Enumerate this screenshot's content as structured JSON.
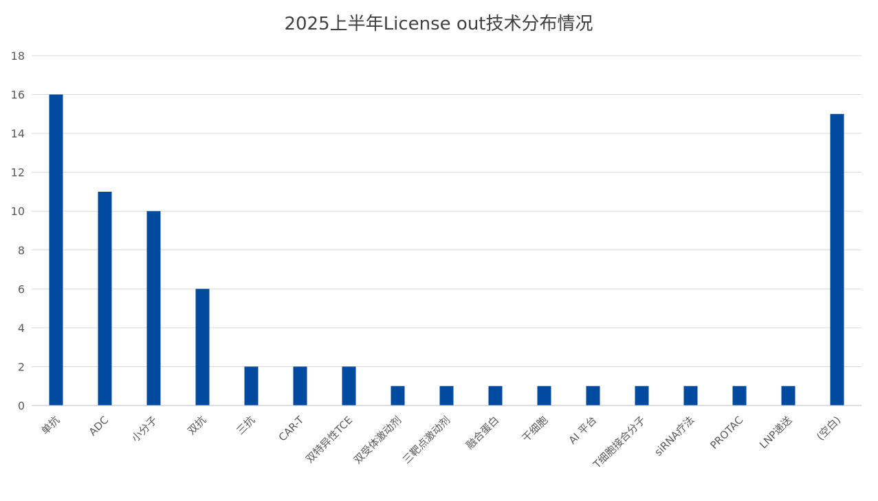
{
  "chart_data": {
    "type": "bar",
    "title": "2025上半年License out技术分布情况",
    "xlabel": "",
    "ylabel": "",
    "ylim": [
      0,
      18
    ],
    "yticks": [
      0,
      2,
      4,
      6,
      8,
      10,
      12,
      14,
      16,
      18
    ],
    "grid": true,
    "legend": "none",
    "bar_color": "#004a9f",
    "categories": [
      "单抗",
      "ADC",
      "小分子",
      "双抗",
      "三抗",
      "CAR-T",
      "双特异性TCE",
      "双受体激动剂",
      "三靶点激动剂",
      "融合蛋白",
      "干细胞",
      "AI 平台",
      "T细胞接合分子",
      "siRNA疗法",
      "PROTAC",
      "LNP递送",
      "(空白)"
    ],
    "values": [
      16,
      11,
      10,
      6,
      2,
      2,
      2,
      1,
      1,
      1,
      1,
      1,
      1,
      1,
      1,
      1,
      15
    ]
  }
}
